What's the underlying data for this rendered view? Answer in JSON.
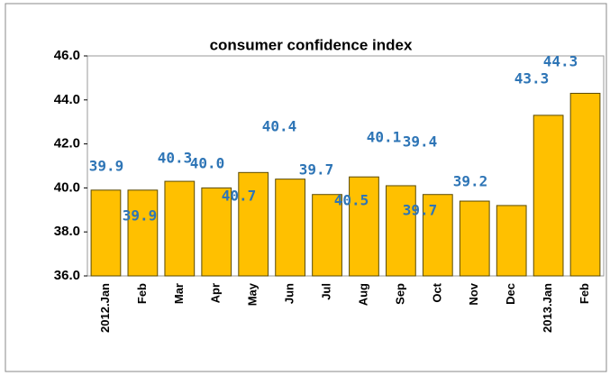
{
  "chart_data": {
    "type": "bar",
    "title": "consumer confidence index",
    "categories": [
      "2012.Jan",
      "Feb",
      "Mar",
      "Apr",
      "May",
      "Jun",
      "Jul",
      "Aug",
      "Sep",
      "Oct",
      "Nov",
      "Dec",
      "2013.Jan",
      "Feb"
    ],
    "values": [
      39.9,
      39.9,
      40.3,
      40.0,
      40.7,
      40.4,
      39.7,
      40.5,
      40.1,
      39.7,
      39.4,
      39.2,
      43.3,
      44.3
    ],
    "value_labels": [
      "39.9",
      "39.9",
      "40.3",
      "40.0",
      "40.7",
      "40.4",
      "39.7",
      "40.5",
      "40.1",
      "39.7",
      "39.4",
      "39.2",
      "43.3",
      "44.3"
    ],
    "color": "#ffc000",
    "ylim": [
      36,
      46
    ],
    "yticks": [
      {
        "value": 36,
        "label": "36.0"
      },
      {
        "value": 38,
        "label": "38.0"
      },
      {
        "value": 40,
        "label": "40.0"
      },
      {
        "value": 42,
        "label": "42.0"
      },
      {
        "value": 44,
        "label": "44.0"
      },
      {
        "value": 46,
        "label": "46.0"
      }
    ]
  }
}
